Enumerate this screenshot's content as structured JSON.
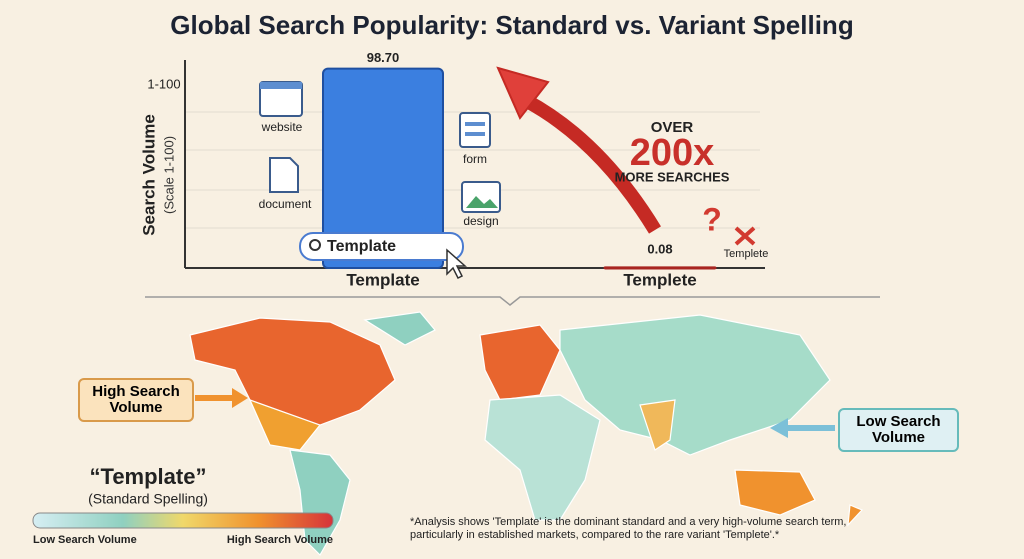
{
  "title": "Global Search Popularity: Standard vs. Variant Spelling",
  "chart_data": {
    "type": "bar",
    "y_label": "Search Volume",
    "y_sublabel": "(Scale 1-100)",
    "y_range_label": "1-100",
    "categories": [
      "Template",
      "Templete"
    ],
    "values": [
      98.7,
      0.08
    ],
    "value_labels": [
      "98.70",
      "0.08"
    ],
    "colors": [
      "#3b7fe0",
      "#e0403a"
    ],
    "ylim": [
      0,
      100
    ]
  },
  "annotations": {
    "icons": [
      "website",
      "document",
      "form",
      "design"
    ],
    "search_box": "Template",
    "comparison": {
      "prefix": "OVER",
      "multiplier": "200x",
      "suffix": "MORE SEARCHES"
    },
    "variant_tag": "Templete"
  },
  "map": {
    "high_label": "High Search Volume",
    "low_label": "Low Search Volume",
    "legend": {
      "title": "“Template”",
      "subtitle": "(Standard Spelling)",
      "low": "Low Search Volume",
      "high": "High Search Volume"
    },
    "footnote": "*Analysis shows 'Template' is the dominant standard and a very high-volume search term, particularly in established markets, compared to the rare variant 'Templete'.*"
  }
}
